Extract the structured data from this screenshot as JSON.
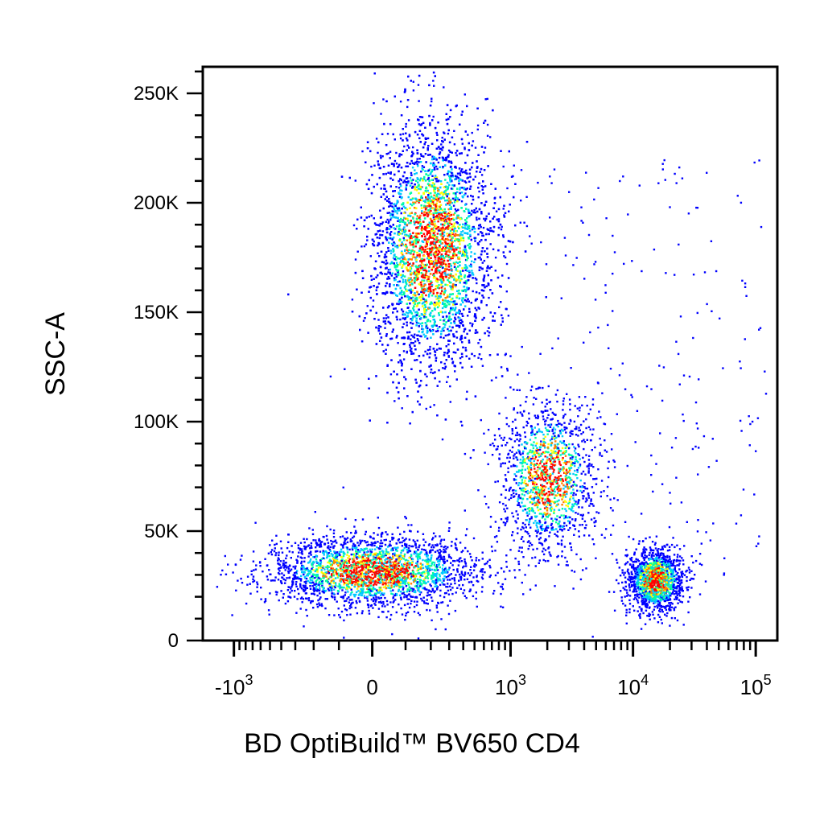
{
  "chart_data": {
    "type": "scatter",
    "title": "",
    "xlabel": "BD OptiBuild™ BV650 CD4",
    "ylabel": "SSC-A",
    "x_scale": "biexponential",
    "xlim": [
      -1800,
      150000
    ],
    "ylim": [
      0,
      262144
    ],
    "x_ticks": [
      {
        "value": -1000,
        "base": "-10",
        "exp": "3"
      },
      {
        "value": 0,
        "base": "0",
        "exp": ""
      },
      {
        "value": 1000,
        "base": "10",
        "exp": "3"
      },
      {
        "value": 10000,
        "base": "10",
        "exp": "4"
      },
      {
        "value": 100000,
        "base": "10",
        "exp": "5"
      }
    ],
    "y_ticks": [
      {
        "value": 0,
        "label": "0"
      },
      {
        "value": 50000,
        "label": "50K"
      },
      {
        "value": 100000,
        "label": "100K"
      },
      {
        "value": 150000,
        "label": "150K"
      },
      {
        "value": 200000,
        "label": "200K"
      },
      {
        "value": 250000,
        "label": "250K"
      }
    ],
    "grid": false,
    "density_colormap": [
      "#0000ff",
      "#00c8ff",
      "#00ffa0",
      "#ffff00",
      "#ff8000",
      "#ff0000"
    ],
    "populations": [
      {
        "name": "",
        "x_center": 200,
        "y_center": 180000,
        "x_spread": 180,
        "y_spread": 28000,
        "count": 5200
      },
      {
        "name": "",
        "x_center": 0,
        "y_center": 32000,
        "x_spread": 170,
        "y_spread": 8000,
        "count": 2600
      },
      {
        "name": "",
        "x_center": 2000,
        "y_center": 75000,
        "x_spread": 1100,
        "y_spread": 17000,
        "count": 1400
      },
      {
        "name": "",
        "x_center": 15000,
        "y_center": 28000,
        "x_spread": 4500,
        "y_spread": 7000,
        "count": 1500
      }
    ]
  }
}
